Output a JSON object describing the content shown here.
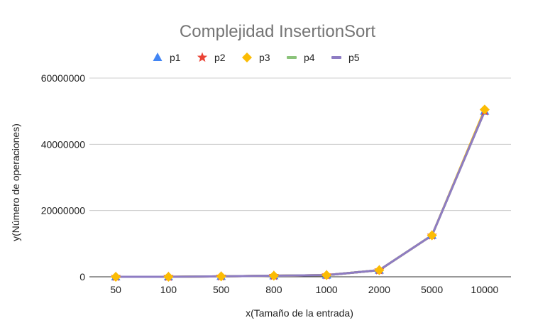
{
  "chart_data": {
    "type": "line",
    "title": "Complejidad InsertionSort",
    "xlabel": "x(Tamaño de la entrada)",
    "ylabel": "y(Número de operaciones)",
    "categories": [
      "50",
      "100",
      "500",
      "800",
      "1000",
      "2000",
      "5000",
      "10000"
    ],
    "ylim": [
      0,
      60000000
    ],
    "yticks": [
      0,
      20000000,
      40000000,
      60000000
    ],
    "ytick_labels": [
      "0",
      "20000000",
      "40000000",
      "60000000"
    ],
    "grid": true,
    "legend_position": "top",
    "series": [
      {
        "name": "p1",
        "marker": "triangle",
        "color": "#4285f4",
        "values": [
          1250,
          5000,
          125000,
          320000,
          500000,
          2000000,
          12500000,
          50000000
        ]
      },
      {
        "name": "p2",
        "marker": "star",
        "color": "#ea4335",
        "values": [
          1250,
          5000,
          125000,
          320000,
          500000,
          2000000,
          12500000,
          50000000
        ]
      },
      {
        "name": "p3",
        "marker": "diamond",
        "color": "#fbbc04",
        "values": [
          1250,
          5000,
          125000,
          320000,
          500000,
          2000000,
          12500000,
          50500000
        ]
      },
      {
        "name": "p4",
        "marker": "line",
        "color": "#8bc37a",
        "values": [
          1250,
          5000,
          125000,
          320000,
          500000,
          2000000,
          12500000,
          50000000
        ]
      },
      {
        "name": "p5",
        "marker": "line",
        "color": "#8e7cc3",
        "values": [
          1250,
          5000,
          125000,
          320000,
          500000,
          2000000,
          12500000,
          50000000
        ]
      }
    ]
  }
}
